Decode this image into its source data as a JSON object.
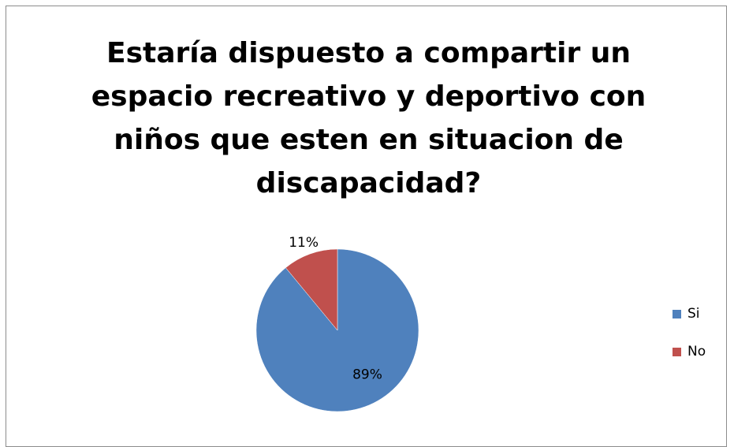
{
  "chart_data": {
    "type": "pie",
    "title": "Estaría dispuesto a compartir un espacio recreativo y deportivo con niños que esten en situacion de discapacidad?",
    "categories": [
      "Si",
      "No"
    ],
    "values": [
      89,
      11
    ],
    "labels": [
      "89%",
      "11%"
    ],
    "colors": [
      "#4f81bd",
      "#c0504d"
    ],
    "legend_position": "right"
  }
}
